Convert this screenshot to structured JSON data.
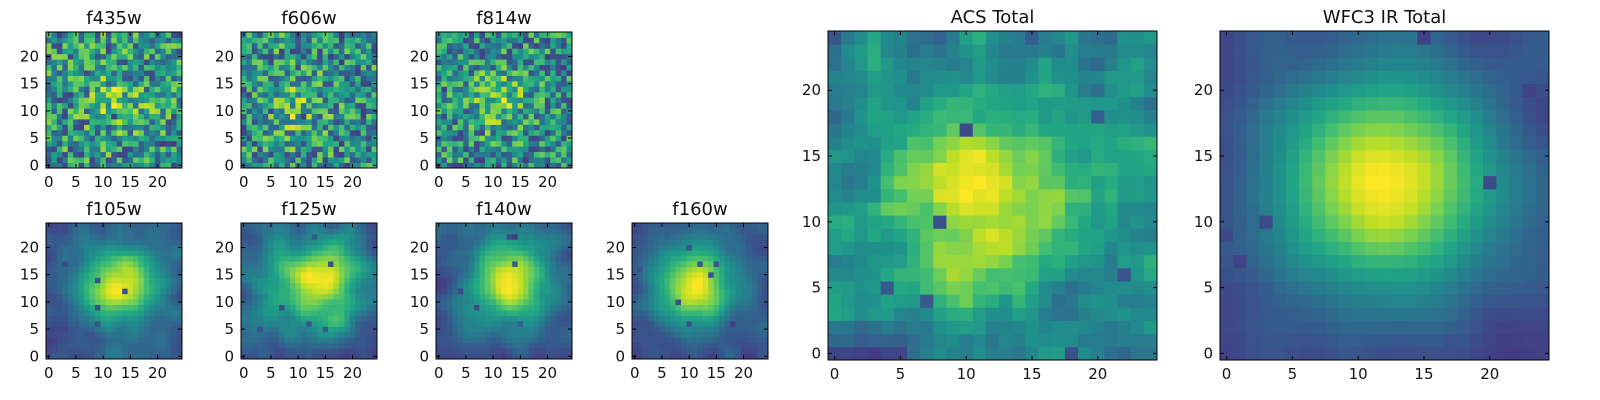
{
  "figure": {
    "background": "#ffffff"
  },
  "chart_data": [
    {
      "id": "f435w",
      "type": "heatmap",
      "title": "f435w",
      "colormap": "viridis",
      "grid": false,
      "xlim": [
        -0.5,
        24.5
      ],
      "ylim": [
        -0.5,
        24.5
      ],
      "xticks": [
        "0",
        "5",
        "10",
        "15",
        "20"
      ],
      "yticks": [
        "0",
        "5",
        "10",
        "15",
        "20"
      ],
      "field": {
        "seed": 11,
        "smooth": 0.08,
        "noise": 0.75,
        "blob": [
          13,
          12,
          4,
          0.25
        ]
      }
    },
    {
      "id": "f606w",
      "type": "heatmap",
      "title": "f606w",
      "colormap": "viridis",
      "grid": false,
      "xlim": [
        -0.5,
        24.5
      ],
      "ylim": [
        -0.5,
        24.5
      ],
      "xticks": [
        "0",
        "5",
        "10",
        "15",
        "20"
      ],
      "yticks": [
        "0",
        "5",
        "10",
        "15",
        "20"
      ],
      "field": {
        "seed": 23,
        "smooth": 0.1,
        "noise": 0.75,
        "blob": [
          9,
          11,
          4,
          0.25
        ]
      }
    },
    {
      "id": "f814w",
      "type": "heatmap",
      "title": "f814w",
      "colormap": "viridis",
      "grid": false,
      "xlim": [
        -0.5,
        24.5
      ],
      "ylim": [
        -0.5,
        24.5
      ],
      "xticks": [
        "0",
        "5",
        "10",
        "15",
        "20"
      ],
      "yticks": [
        "0",
        "5",
        "10",
        "15",
        "20"
      ],
      "field": {
        "seed": 37,
        "smooth": 0.1,
        "noise": 0.75,
        "blob": [
          11,
          12,
          4,
          0.3
        ]
      }
    },
    {
      "id": "f105w",
      "type": "heatmap",
      "title": "f105w",
      "colormap": "viridis",
      "grid": false,
      "xlim": [
        -0.5,
        24.5
      ],
      "ylim": [
        -0.5,
        24.5
      ],
      "xticks": [
        "0",
        "5",
        "10",
        "15",
        "20"
      ],
      "yticks": [
        "0",
        "5",
        "10",
        "15",
        "20"
      ],
      "field": {
        "seed": 41,
        "smooth": 0.45,
        "noise": 0.4,
        "blob": [
          13,
          13,
          5,
          0.45
        ]
      }
    },
    {
      "id": "f125w",
      "type": "heatmap",
      "title": "f125w",
      "colormap": "viridis",
      "grid": false,
      "xlim": [
        -0.5,
        24.5
      ],
      "ylim": [
        -0.5,
        24.5
      ],
      "xticks": [
        "0",
        "5",
        "10",
        "15",
        "20"
      ],
      "yticks": [
        "0",
        "5",
        "10",
        "15",
        "20"
      ],
      "field": {
        "seed": 53,
        "smooth": 0.5,
        "noise": 0.4,
        "blob": [
          14,
          14,
          6,
          0.35
        ]
      }
    },
    {
      "id": "f140w",
      "type": "heatmap",
      "title": "f140w",
      "colormap": "viridis",
      "grid": false,
      "xlim": [
        -0.5,
        24.5
      ],
      "ylim": [
        -0.5,
        24.5
      ],
      "xticks": [
        "0",
        "5",
        "10",
        "15",
        "20"
      ],
      "yticks": [
        "0",
        "5",
        "10",
        "15",
        "20"
      ],
      "field": {
        "seed": 67,
        "smooth": 0.5,
        "noise": 0.4,
        "blob": [
          13,
          14,
          5,
          0.45
        ]
      }
    },
    {
      "id": "f160w",
      "type": "heatmap",
      "title": "f160w",
      "colormap": "viridis",
      "grid": false,
      "xlim": [
        -0.5,
        24.5
      ],
      "ylim": [
        -0.5,
        24.5
      ],
      "xticks": [
        "0",
        "5",
        "10",
        "15",
        "20"
      ],
      "yticks": [
        "0",
        "5",
        "10",
        "15",
        "20"
      ],
      "field": {
        "seed": 79,
        "smooth": 0.55,
        "noise": 0.35,
        "blob": [
          11,
          13,
          5,
          0.55
        ]
      }
    },
    {
      "id": "acs-total",
      "type": "heatmap",
      "title": "ACS Total",
      "colormap": "viridis",
      "grid": false,
      "xlim": [
        -0.5,
        24.5
      ],
      "ylim": [
        -0.5,
        24.5
      ],
      "xticks": [
        "0",
        "5",
        "10",
        "15",
        "20"
      ],
      "yticks": [
        "0",
        "5",
        "10",
        "15",
        "20"
      ],
      "field": {
        "seed": 97,
        "smooth": 0.3,
        "noise": 0.5,
        "blob": [
          11,
          12,
          5,
          0.35
        ]
      }
    },
    {
      "id": "wfc3-ir-total",
      "type": "heatmap",
      "title": "WFC3 IR Total",
      "colormap": "viridis",
      "grid": false,
      "xlim": [
        -0.5,
        24.5
      ],
      "ylim": [
        -0.5,
        24.5
      ],
      "xticks": [
        "0",
        "5",
        "10",
        "15",
        "20"
      ],
      "yticks": [
        "0",
        "5",
        "10",
        "15",
        "20"
      ],
      "field": {
        "seed": 113,
        "smooth": 0.7,
        "noise": 0.3,
        "blob": [
          12,
          13,
          6,
          0.6
        ]
      }
    }
  ]
}
